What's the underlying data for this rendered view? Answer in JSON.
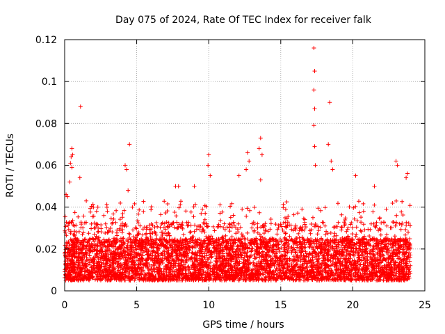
{
  "chart_data": {
    "type": "scatter",
    "title": "Day 075 of 2024, Rate Of TEC Index for receiver falk",
    "xlabel": "GPS time / hours",
    "ylabel": "ROTI / TECUs",
    "xlim": [
      0,
      25
    ],
    "ylim": [
      0,
      0.12
    ],
    "xticks": [
      0,
      5,
      10,
      15,
      20,
      25
    ],
    "yticks": [
      0,
      0.02,
      0.04,
      0.06,
      0.08,
      0.1,
      0.12
    ],
    "xtick_labels": [
      "0",
      "5",
      "10",
      "15",
      "20",
      "25"
    ],
    "ytick_labels": [
      "0",
      "0.02",
      "0.04",
      "0.06",
      "0.08",
      "0.1",
      "0.12"
    ],
    "grid": true,
    "marker": "+",
    "color": "#ff0000",
    "series": [
      {
        "name": "ROTI",
        "x_range": [
          0,
          24
        ],
        "bulk_y_range": [
          0.005,
          0.025
        ],
        "notable_points": [
          {
            "x": 0.1,
            "y": 0.046
          },
          {
            "x": 0.2,
            "y": 0.045
          },
          {
            "x": 0.35,
            "y": 0.052
          },
          {
            "x": 0.4,
            "y": 0.061
          },
          {
            "x": 0.45,
            "y": 0.064
          },
          {
            "x": 0.5,
            "y": 0.068
          },
          {
            "x": 0.55,
            "y": 0.065
          },
          {
            "x": 0.5,
            "y": 0.059
          },
          {
            "x": 1.05,
            "y": 0.054
          },
          {
            "x": 1.1,
            "y": 0.088
          },
          {
            "x": 2.0,
            "y": 0.04
          },
          {
            "x": 2.3,
            "y": 0.04
          },
          {
            "x": 4.2,
            "y": 0.06
          },
          {
            "x": 4.3,
            "y": 0.058
          },
          {
            "x": 4.4,
            "y": 0.048
          },
          {
            "x": 4.5,
            "y": 0.07
          },
          {
            "x": 4.7,
            "y": 0.04
          },
          {
            "x": 7.7,
            "y": 0.05
          },
          {
            "x": 7.9,
            "y": 0.05
          },
          {
            "x": 9.0,
            "y": 0.05
          },
          {
            "x": 10.0,
            "y": 0.065
          },
          {
            "x": 9.95,
            "y": 0.06
          },
          {
            "x": 10.1,
            "y": 0.055
          },
          {
            "x": 12.1,
            "y": 0.055
          },
          {
            "x": 12.7,
            "y": 0.066
          },
          {
            "x": 12.8,
            "y": 0.062
          },
          {
            "x": 12.6,
            "y": 0.058
          },
          {
            "x": 13.6,
            "y": 0.073
          },
          {
            "x": 13.5,
            "y": 0.068
          },
          {
            "x": 13.7,
            "y": 0.065
          },
          {
            "x": 13.6,
            "y": 0.053
          },
          {
            "x": 17.3,
            "y": 0.116
          },
          {
            "x": 17.35,
            "y": 0.105
          },
          {
            "x": 17.3,
            "y": 0.096
          },
          {
            "x": 17.35,
            "y": 0.087
          },
          {
            "x": 17.3,
            "y": 0.079
          },
          {
            "x": 17.35,
            "y": 0.069
          },
          {
            "x": 17.4,
            "y": 0.06
          },
          {
            "x": 18.4,
            "y": 0.09
          },
          {
            "x": 18.3,
            "y": 0.07
          },
          {
            "x": 18.5,
            "y": 0.062
          },
          {
            "x": 18.6,
            "y": 0.058
          },
          {
            "x": 20.2,
            "y": 0.055
          },
          {
            "x": 21.5,
            "y": 0.05
          },
          {
            "x": 23.0,
            "y": 0.062
          },
          {
            "x": 23.1,
            "y": 0.06
          },
          {
            "x": 23.8,
            "y": 0.056
          },
          {
            "x": 23.7,
            "y": 0.054
          }
        ]
      }
    ]
  }
}
